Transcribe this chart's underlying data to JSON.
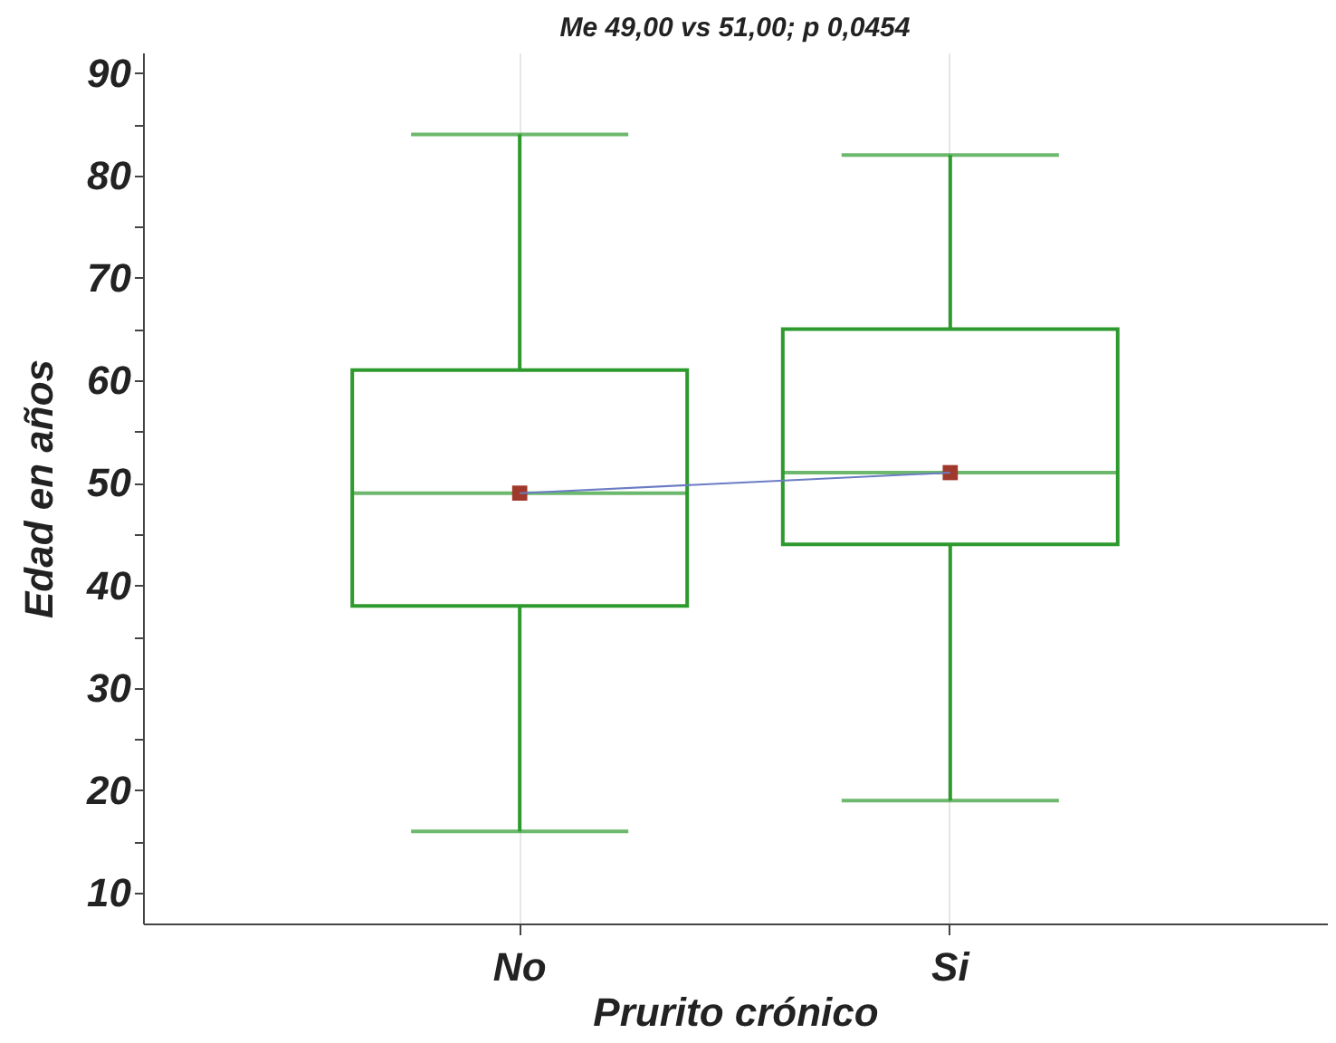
{
  "chart_data": {
    "type": "box",
    "title": "Me 49,00 vs 51,00; p 0,0454",
    "xlabel": "Prurito crónico",
    "ylabel": "Edad en años",
    "categories": [
      "No",
      "Si"
    ],
    "boxes": [
      {
        "low": 16,
        "q1": 38,
        "median": 49,
        "q3": 61,
        "high": 84
      },
      {
        "low": 19,
        "q1": 44,
        "median": 51,
        "q3": 65,
        "high": 82
      }
    ],
    "color": "#2e9a2e",
    "marker": "square",
    "series": [
      {
        "type": "scatter",
        "color": "#a0392c",
        "x": [
          "No",
          "Si"
        ],
        "values": [
          49,
          51
        ]
      },
      {
        "type": "line",
        "color": "#6b7cc4",
        "x": [
          "No",
          "Si"
        ],
        "values": [
          49,
          51
        ],
        "marker": "none"
      }
    ],
    "ylim": [
      7,
      92
    ],
    "yticks": [
      10,
      {
        "value": 15,
        "label": null
      },
      20,
      {
        "value": 25,
        "label": null
      },
      30,
      {
        "value": 35,
        "label": null
      },
      40,
      {
        "value": 45,
        "label": null
      },
      50,
      {
        "value": 55,
        "label": null
      },
      60,
      {
        "value": 65,
        "label": null
      },
      70,
      {
        "value": 75,
        "label": null
      },
      80,
      {
        "value": 85,
        "label": null
      },
      90
    ],
    "grid": "x"
  }
}
